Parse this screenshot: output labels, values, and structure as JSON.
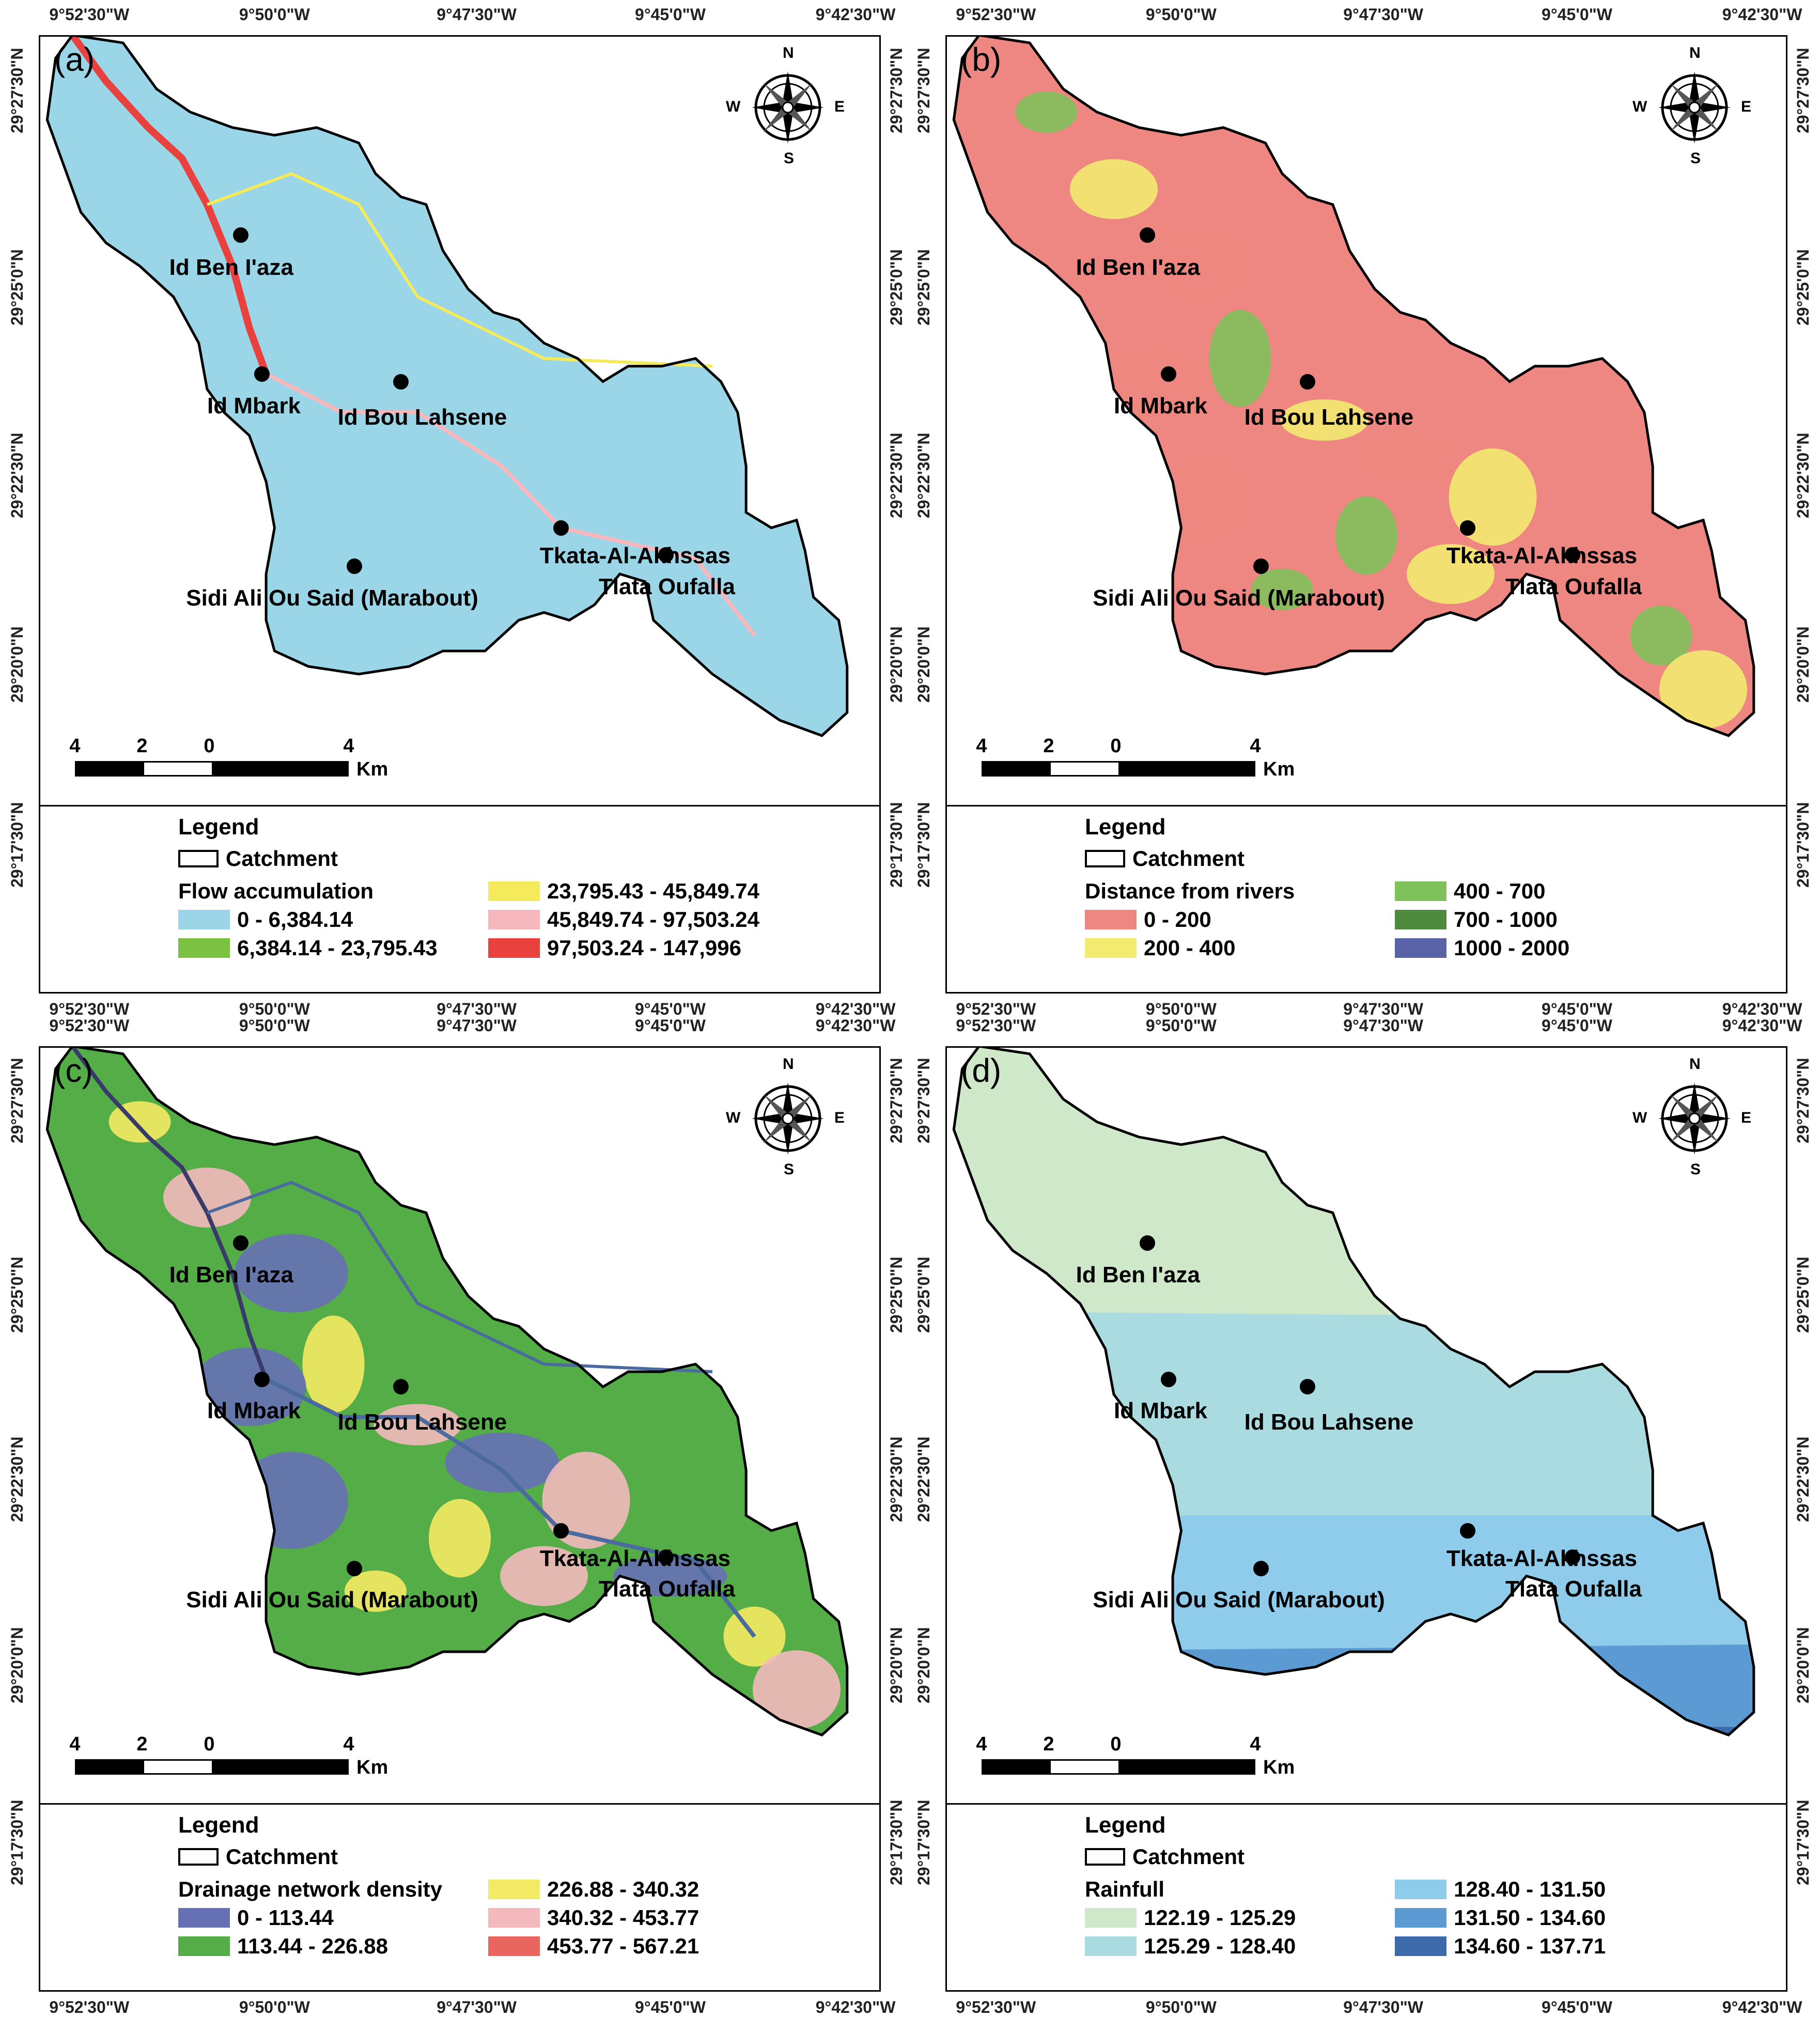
{
  "panels": [
    {
      "label": "(a)",
      "places": [
        "Id Ben I'aza",
        "Id Mbark",
        "Id Bou Lahsene",
        "Tkata-Al-Akhssas",
        "Sidi Ali Ou Said (Marabout)",
        "Tlata Oufalla"
      ],
      "legend": {
        "title": "Legend",
        "catchment": "Catchment",
        "subtitle": "Flow accumulation",
        "items": [
          {
            "label": "0 - 6,384.14",
            "color": "#9bd6e8"
          },
          {
            "label": "6,384.14 - 23,795.43",
            "color": "#7cc242"
          },
          {
            "label": "23,795.43 - 45,849.74",
            "color": "#f5ea5a"
          },
          {
            "label": "45,849.74 - 97,503.24",
            "color": "#f6b8bd"
          },
          {
            "label": "97,503.24 - 147,996",
            "color": "#e8413e"
          }
        ]
      }
    },
    {
      "label": "(b)",
      "places": [
        "Id Ben I'aza",
        "Id Mbark",
        "Id Bou Lahsene",
        "Tkata-Al-Akhssas",
        "Sidi Ali Ou Said (Marabout)",
        "Tlata Oufalla"
      ],
      "legend": {
        "title": "Legend",
        "catchment": "Catchment",
        "subtitle": "Distance from rivers",
        "items": [
          {
            "label": "0 - 200",
            "color": "#ee8781"
          },
          {
            "label": "200 - 400",
            "color": "#f3ea70"
          },
          {
            "label": "400 - 700",
            "color": "#7fc15a"
          },
          {
            "label": "700 - 1000",
            "color": "#4e8a3f"
          },
          {
            "label": "1000 - 2000",
            "color": "#5b63a8"
          }
        ]
      }
    },
    {
      "label": "(c)",
      "places": [
        "Id Ben I'aza",
        "Id Mbark",
        "Id Bou Lahsene",
        "Tkata-Al-Akhssas",
        "Sidi Ali Ou Said (Marabout)",
        "Tlata Oufalla"
      ],
      "legend": {
        "title": "Legend",
        "catchment": "Catchment",
        "subtitle": "Drainage network density",
        "items": [
          {
            "label": "0 - 113.44",
            "color": "#6670b5"
          },
          {
            "label": "113.44 - 226.88",
            "color": "#54ad47"
          },
          {
            "label": "226.88 - 340.32",
            "color": "#f4ea64"
          },
          {
            "label": "340.32 - 453.77",
            "color": "#f3b9bd"
          },
          {
            "label": "453.77 - 567.21",
            "color": "#ea6460"
          }
        ]
      }
    },
    {
      "label": "(d)",
      "places": [
        "Id Ben I'aza",
        "Id Mbark",
        "Id Bou Lahsene",
        "Tkata-Al-Akhssas",
        "Sidi Ali Ou Said (Marabout)",
        "Tlata Oufalla"
      ],
      "legend": {
        "title": "Legend",
        "catchment": "Catchment",
        "subtitle": "Rainfull",
        "items": [
          {
            "label": "122.19 - 125.29",
            "color": "#cfe8c9"
          },
          {
            "label": "125.29 - 128.40",
            "color": "#a9dbe0"
          },
          {
            "label": "128.40 - 131.50",
            "color": "#8fcbea"
          },
          {
            "label": "131.50 - 134.60",
            "color": "#5b9ad2"
          },
          {
            "label": "134.60 - 137.71",
            "color": "#3d6aaa"
          }
        ]
      }
    }
  ],
  "lon_ticks": [
    "9°52'30\"W",
    "9°50'0\"W",
    "9°47'30\"W",
    "9°45'0\"W",
    "9°42'30\"W"
  ],
  "lat_ticks": [
    "29°27'30\"N",
    "29°25'0\"N",
    "29°22'30\"N",
    "29°20'0\"N",
    "29°17'30\"N"
  ],
  "scale": {
    "labels": [
      "4",
      "2",
      "0",
      "4"
    ],
    "unit": "Km"
  },
  "compass": {
    "n": "N",
    "s": "S",
    "e": "E",
    "w": "W"
  }
}
